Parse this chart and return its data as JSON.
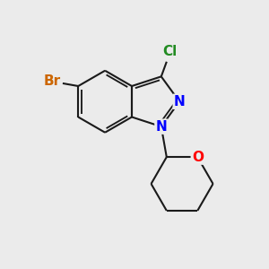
{
  "bg_color": "#ebebeb",
  "bond_color": "#1a1a1a",
  "bond_width": 1.5,
  "atom_colors": {
    "Br": "#cc6600",
    "Cl": "#228B22",
    "N": "#0000ff",
    "O": "#ff0000",
    "C": "#1a1a1a"
  },
  "font_size": 11,
  "xlim": [
    0,
    10
  ],
  "ylim": [
    0,
    10
  ]
}
